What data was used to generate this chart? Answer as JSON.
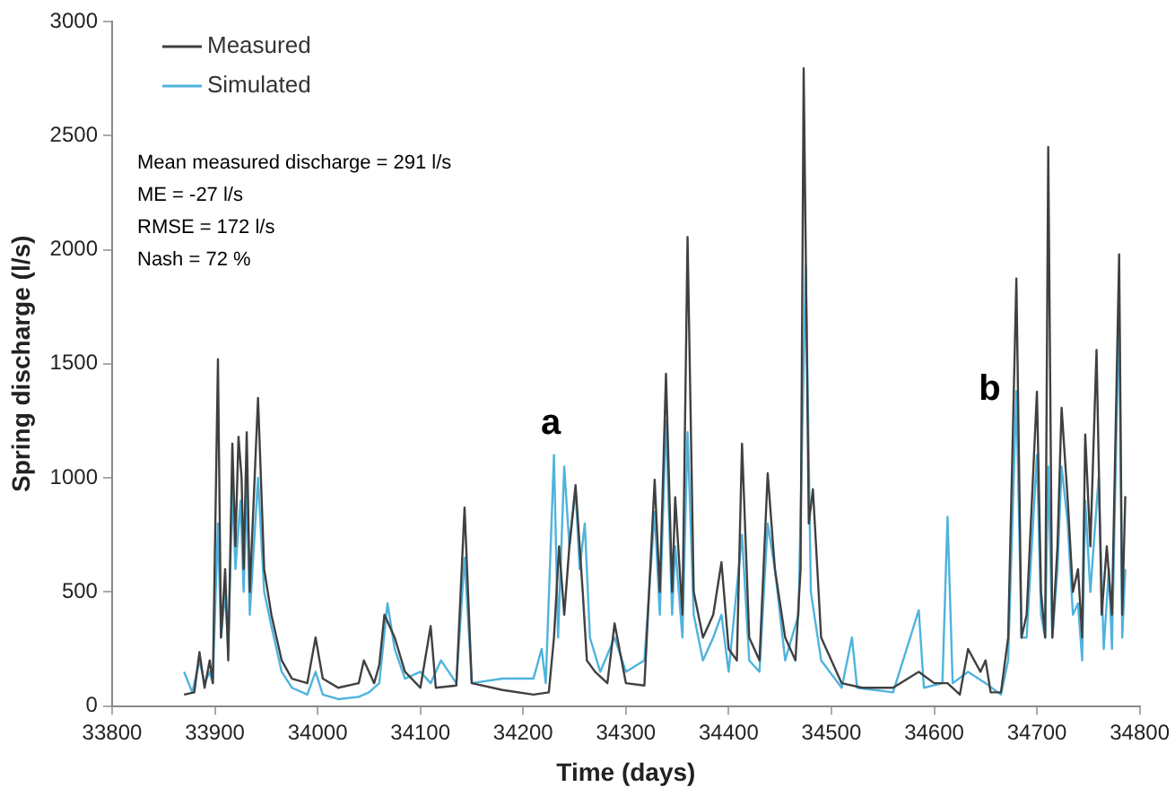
{
  "chart_data": {
    "type": "line",
    "xlabel": "Time (days)",
    "ylabel": "Spring discharge (l/s)",
    "xlim": [
      33800,
      34800
    ],
    "xticks": [
      33800,
      33900,
      34000,
      34100,
      34200,
      34300,
      34400,
      34500,
      34600,
      34700,
      34800
    ],
    "ylim": [
      0,
      3000
    ],
    "yticks": [
      0,
      500,
      1000,
      1500,
      2000,
      2500,
      3000
    ],
    "grid": false,
    "legend": "top left",
    "marker": "none",
    "line_style": "solid",
    "annotations": [
      "Mean measured discharge = 291 l/s",
      "ME = -27 l/s",
      "RMSE = 172 l/s",
      "Nash = 72 %",
      "a",
      "b"
    ],
    "series": [
      {
        "name": "Measured",
        "color": "#404040",
        "x": [
          33870,
          33880,
          33885,
          33890,
          33895,
          33898,
          33903,
          33906,
          33910,
          33913,
          33917,
          33920,
          33923,
          33926,
          33928,
          33931,
          33934,
          33942,
          33948,
          33955,
          33965,
          33975,
          33990,
          33998,
          34005,
          34020,
          34040,
          34045,
          34055,
          34060,
          34065,
          34075,
          34085,
          34100,
          34110,
          34115,
          34135,
          34143,
          34150,
          34180,
          34210,
          34225,
          34230,
          34235,
          34240,
          34245,
          34251,
          34258,
          34262,
          34270,
          34282,
          34289,
          34300,
          34318,
          34328,
          34333,
          34339,
          34345,
          34348,
          34355,
          34360,
          34366,
          34375,
          34385,
          34393,
          34400,
          34408,
          34413,
          34420,
          34430,
          34438,
          34445,
          34455,
          34465,
          34470,
          34473,
          34478,
          34482,
          34490,
          34510,
          34530,
          34560,
          34585,
          34600,
          34613,
          34625,
          34633,
          34645,
          34650,
          34655,
          34665,
          34672,
          34680,
          34685,
          34690,
          34700,
          34704,
          34708,
          34711,
          34715,
          34720,
          34724,
          34730,
          34735,
          34740,
          34744,
          34747,
          34752,
          34758,
          34763,
          34768,
          34773,
          34780,
          34783,
          34786
        ],
        "values": [
          50,
          60,
          236,
          80,
          200,
          100,
          1520,
          300,
          600,
          200,
          1150,
          700,
          1180,
          1000,
          600,
          1200,
          500,
          1350,
          600,
          400,
          200,
          120,
          100,
          300,
          120,
          80,
          100,
          200,
          100,
          180,
          400,
          300,
          150,
          80,
          350,
          80,
          90,
          870,
          100,
          70,
          50,
          60,
          300,
          700,
          400,
          700,
          968,
          500,
          200,
          150,
          100,
          362,
          100,
          90,
          992,
          500,
          1456,
          500,
          915,
          400,
          2055,
          500,
          300,
          400,
          630,
          250,
          200,
          1150,
          300,
          200,
          1020,
          600,
          300,
          200,
          600,
          2795,
          800,
          950,
          300,
          100,
          80,
          80,
          150,
          100,
          100,
          50,
          250,
          150,
          200,
          60,
          60,
          300,
          1874,
          300,
          400,
          1378,
          500,
          300,
          2450,
          300,
          700,
          1307,
          900,
          500,
          600,
          300,
          1190,
          700,
          1560,
          400,
          700,
          400,
          1980,
          400,
          920
        ]
      },
      {
        "name": "Simulated",
        "color": "#4fb3dd",
        "x": [
          33870,
          33878,
          33885,
          33890,
          33895,
          33898,
          33903,
          33906,
          33910,
          33913,
          33917,
          33920,
          33925,
          33928,
          33931,
          33934,
          33942,
          33948,
          33955,
          33965,
          33975,
          33990,
          33998,
          34005,
          34020,
          34040,
          34050,
          34060,
          34068,
          34075,
          34085,
          34100,
          34110,
          34120,
          34135,
          34143,
          34150,
          34180,
          34210,
          34218,
          34222,
          34230,
          34234,
          34240,
          34245,
          34251,
          34255,
          34260,
          34265,
          34275,
          34289,
          34300,
          34318,
          34328,
          34333,
          34339,
          34345,
          34348,
          34355,
          34360,
          34366,
          34375,
          34385,
          34393,
          34400,
          34413,
          34420,
          34430,
          34438,
          34445,
          34455,
          34468,
          34475,
          34480,
          34490,
          34510,
          34520,
          34525,
          34560,
          34585,
          34590,
          34608,
          34613,
          34618,
          34633,
          34650,
          34665,
          34672,
          34680,
          34685,
          34690,
          34700,
          34704,
          34708,
          34711,
          34715,
          34720,
          34724,
          34730,
          34735,
          34740,
          34744,
          34747,
          34752,
          34760,
          34765,
          34770,
          34773,
          34780,
          34783,
          34786
        ],
        "values": [
          150,
          60,
          200,
          100,
          150,
          100,
          800,
          300,
          500,
          250,
          950,
          600,
          900,
          500,
          950,
          400,
          1000,
          500,
          350,
          150,
          80,
          50,
          150,
          50,
          30,
          40,
          60,
          100,
          450,
          250,
          120,
          150,
          100,
          200,
          100,
          650,
          100,
          120,
          120,
          250,
          100,
          1100,
          300,
          1050,
          700,
          950,
          600,
          800,
          300,
          150,
          300,
          150,
          200,
          850,
          400,
          1250,
          400,
          700,
          300,
          1200,
          400,
          200,
          300,
          400,
          150,
          750,
          200,
          150,
          800,
          600,
          200,
          400,
          1930,
          500,
          200,
          80,
          300,
          80,
          60,
          420,
          80,
          100,
          830,
          100,
          150,
          100,
          50,
          200,
          1380,
          300,
          300,
          1100,
          400,
          300,
          1050,
          300,
          600,
          1050,
          800,
          400,
          450,
          200,
          900,
          500,
          1000,
          250,
          600,
          250,
          1770,
          300,
          600
        ]
      }
    ]
  }
}
